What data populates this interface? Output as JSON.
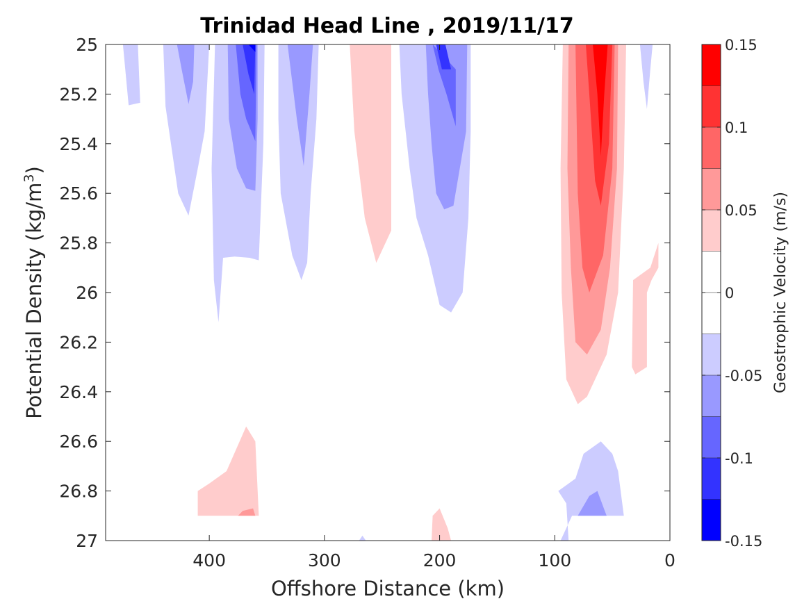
{
  "chart_data": {
    "type": "contour",
    "title": "Trinidad Head Line , 2019/11/17",
    "xlabel": "Offshore Distance (km)",
    "ylabel_prefix": "Potential Density (kg/m",
    "ylabel_sup": "3",
    "ylabel_suffix": ")",
    "xlim": [
      490,
      0
    ],
    "x_reversed": true,
    "ylim": [
      27,
      25
    ],
    "y_reversed": true,
    "x_ticks": [
      400,
      300,
      200,
      100,
      0
    ],
    "y_ticks": [
      "25",
      "25.2",
      "25.4",
      "25.6",
      "25.8",
      "26",
      "26.2",
      "26.4",
      "26.6",
      "26.8",
      "27"
    ],
    "grid": false,
    "colorbar": {
      "label": "Geostrophic Velocity (m/s)",
      "range": [
        -0.15,
        0.15
      ],
      "ticks": [
        "0.15",
        "0.1",
        "0.05",
        "0",
        "-0.05",
        "-0.1",
        "-0.15"
      ],
      "levels": [
        {
          "from": 0.125,
          "to": 0.15,
          "color": "#ff0000"
        },
        {
          "from": 0.1,
          "to": 0.125,
          "color": "#ff3333"
        },
        {
          "from": 0.075,
          "to": 0.1,
          "color": "#ff6666"
        },
        {
          "from": 0.05,
          "to": 0.075,
          "color": "#ff9999"
        },
        {
          "from": 0.025,
          "to": 0.05,
          "color": "#ffcccc"
        },
        {
          "from": 0.0,
          "to": 0.025,
          "color": "#ffffff"
        },
        {
          "from": -0.025,
          "to": 0.0,
          "color": "#ffffff"
        },
        {
          "from": -0.05,
          "to": -0.025,
          "color": "#ccccff"
        },
        {
          "from": -0.075,
          "to": -0.05,
          "color": "#9999ff"
        },
        {
          "from": -0.1,
          "to": -0.075,
          "color": "#6666ff"
        },
        {
          "from": -0.125,
          "to": -0.1,
          "color": "#3333ff"
        },
        {
          "from": -0.15,
          "to": -0.125,
          "color": "#0000ff"
        }
      ]
    },
    "regions": [
      {
        "level": -0.04,
        "color": "#ccccff",
        "points": [
          [
            475,
            25
          ],
          [
            462,
            25
          ],
          [
            460,
            25.235
          ],
          [
            470,
            25.245
          ]
        ]
      },
      {
        "level": -0.04,
        "color": "#ccccff",
        "points": [
          [
            440,
            25
          ],
          [
            400,
            25
          ],
          [
            404,
            25.35
          ],
          [
            410,
            25.5
          ],
          [
            418,
            25.69
          ],
          [
            427,
            25.6
          ],
          [
            438,
            25.25
          ]
        ]
      },
      {
        "level": -0.06,
        "color": "#9999ff",
        "points": [
          [
            428,
            25
          ],
          [
            413,
            25
          ],
          [
            414,
            25.15
          ],
          [
            418,
            25.24
          ],
          [
            424,
            25.1
          ]
        ]
      },
      {
        "level": -0.04,
        "color": "#ccccff",
        "points": [
          [
            395,
            25
          ],
          [
            352,
            25
          ],
          [
            353,
            25.4
          ],
          [
            357,
            25.87
          ],
          [
            365,
            25.86
          ],
          [
            378,
            25.855
          ],
          [
            388,
            25.86
          ],
          [
            392,
            26.12
          ],
          [
            396,
            25.95
          ],
          [
            398,
            25.5
          ]
        ]
      },
      {
        "level": -0.06,
        "color": "#9999ff",
        "points": [
          [
            384,
            25
          ],
          [
            358,
            25
          ],
          [
            358,
            25.3
          ],
          [
            360,
            25.59
          ],
          [
            368,
            25.58
          ],
          [
            376,
            25.5
          ],
          [
            383,
            25.3
          ]
        ]
      },
      {
        "level": -0.09,
        "color": "#6666ff",
        "points": [
          [
            377,
            25
          ],
          [
            359,
            25
          ],
          [
            360,
            25.39
          ],
          [
            368,
            25.3
          ],
          [
            373,
            25.2
          ]
        ]
      },
      {
        "level": -0.11,
        "color": "#3333ff",
        "points": [
          [
            371,
            25
          ],
          [
            360,
            25
          ],
          [
            361,
            25.2
          ],
          [
            366,
            25.12
          ]
        ]
      },
      {
        "level": -0.14,
        "color": "#0000ff",
        "points": [
          [
            366,
            25
          ],
          [
            360,
            25
          ],
          [
            360,
            25.03
          ]
        ]
      },
      {
        "level": -0.04,
        "color": "#ccccff",
        "points": [
          [
            340,
            25
          ],
          [
            305,
            25
          ],
          [
            307,
            25.3
          ],
          [
            312,
            25.6
          ],
          [
            315,
            25.88
          ],
          [
            320,
            25.95
          ],
          [
            328,
            25.85
          ],
          [
            338,
            25.6
          ],
          [
            340,
            25.3
          ]
        ]
      },
      {
        "level": -0.06,
        "color": "#9999ff",
        "points": [
          [
            332,
            25
          ],
          [
            310,
            25
          ],
          [
            313,
            25.2
          ],
          [
            318,
            25.49
          ],
          [
            324,
            25.3
          ]
        ]
      },
      {
        "level": 0.04,
        "color": "#ffcccc",
        "points": [
          [
            278,
            25
          ],
          [
            242,
            25
          ],
          [
            242,
            25.35
          ],
          [
            242,
            25.75
          ],
          [
            255,
            25.88
          ],
          [
            265,
            25.7
          ],
          [
            274,
            25.35
          ]
        ]
      },
      {
        "level": -0.04,
        "color": "#ccccff",
        "points": [
          [
            235,
            25
          ],
          [
            173,
            25
          ],
          [
            173,
            25.35
          ],
          [
            175,
            25.7
          ],
          [
            180,
            26.0
          ],
          [
            190,
            26.08
          ],
          [
            200,
            26.05
          ],
          [
            210,
            25.85
          ],
          [
            220,
            25.7
          ],
          [
            226,
            25.5
          ],
          [
            233,
            25.2
          ]
        ]
      },
      {
        "level": -0.06,
        "color": "#9999ff",
        "points": [
          [
            212,
            25
          ],
          [
            176,
            25
          ],
          [
            177,
            25.35
          ],
          [
            188,
            25.65
          ],
          [
            196,
            25.665
          ],
          [
            203,
            25.6
          ],
          [
            207,
            25.4
          ],
          [
            210,
            25.2
          ]
        ]
      },
      {
        "level": -0.09,
        "color": "#6666ff",
        "points": [
          [
            206,
            25
          ],
          [
            186,
            25.1
          ],
          [
            186,
            25.33
          ],
          [
            194,
            25.2
          ],
          [
            201,
            25.1
          ]
        ]
      },
      {
        "level": -0.11,
        "color": "#3333ff",
        "points": [
          [
            203,
            25
          ],
          [
            195,
            25
          ],
          [
            190,
            25.1
          ],
          [
            198,
            25.1
          ]
        ]
      },
      {
        "level": 0.04,
        "color": "#ffcccc",
        "points": [
          [
            93,
            25
          ],
          [
            38,
            25
          ],
          [
            40,
            25.5
          ],
          [
            45,
            26.0
          ],
          [
            55,
            26.25
          ],
          [
            72,
            26.42
          ],
          [
            80,
            26.45
          ],
          [
            90,
            26.35
          ],
          [
            94,
            26.0
          ],
          [
            95,
            25.5
          ]
        ]
      },
      {
        "level": 0.06,
        "color": "#ff9999",
        "points": [
          [
            88,
            25
          ],
          [
            45,
            25
          ],
          [
            46,
            25.5
          ],
          [
            52,
            25.9
          ],
          [
            60,
            26.15
          ],
          [
            72,
            26.25
          ],
          [
            82,
            26.2
          ],
          [
            86,
            25.9
          ],
          [
            89,
            25.5
          ]
        ]
      },
      {
        "level": 0.09,
        "color": "#ff6666",
        "points": [
          [
            82,
            25
          ],
          [
            48,
            25
          ],
          [
            50,
            25.5
          ],
          [
            58,
            25.85
          ],
          [
            70,
            26.0
          ],
          [
            76,
            25.9
          ],
          [
            80,
            25.6
          ]
        ]
      },
      {
        "level": 0.11,
        "color": "#ff3333",
        "points": [
          [
            73,
            25
          ],
          [
            50,
            25
          ],
          [
            53,
            25.4
          ],
          [
            60,
            25.65
          ],
          [
            65,
            25.55
          ],
          [
            70,
            25.2
          ]
        ]
      },
      {
        "level": 0.14,
        "color": "#ff0000",
        "points": [
          [
            67,
            25
          ],
          [
            54,
            25
          ],
          [
            57,
            25.2
          ],
          [
            60,
            25.45
          ],
          [
            63,
            25.2
          ]
        ]
      },
      {
        "level": 0.04,
        "color": "#ffcccc",
        "points": [
          [
            10,
            25.8
          ],
          [
            17,
            25.9
          ],
          [
            32,
            25.95
          ],
          [
            33,
            26.3
          ],
          [
            30,
            26.33
          ],
          [
            20,
            26.3
          ],
          [
            20,
            26.0
          ],
          [
            16,
            25.95
          ],
          [
            10,
            25.9
          ]
        ]
      },
      {
        "level": -0.04,
        "color": "#ccccff",
        "points": [
          [
            26,
            25
          ],
          [
            15,
            25
          ],
          [
            17,
            25.1
          ],
          [
            20,
            25.26
          ],
          [
            23,
            25.15
          ]
        ]
      },
      {
        "level": 0.04,
        "color": "#ffcccc",
        "points": [
          [
            410,
            26.8
          ],
          [
            410,
            26.9
          ],
          [
            357,
            26.9
          ],
          [
            360,
            26.6
          ],
          [
            368,
            26.54
          ],
          [
            385,
            26.72
          ],
          [
            400,
            26.77
          ]
        ]
      },
      {
        "level": 0.06,
        "color": "#ff9999",
        "points": [
          [
            375,
            26.9
          ],
          [
            360,
            26.9
          ],
          [
            362,
            26.87
          ],
          [
            371,
            26.88
          ]
        ]
      },
      {
        "level": -0.04,
        "color": "#ccccff",
        "points": [
          [
            95,
            27
          ],
          [
            88,
            27
          ],
          [
            90,
            26.85
          ],
          [
            97,
            26.8
          ],
          [
            82,
            26.75
          ],
          [
            75,
            26.65
          ],
          [
            60,
            26.6
          ],
          [
            50,
            26.65
          ],
          [
            45,
            26.72
          ],
          [
            40,
            26.9
          ],
          [
            37,
            26.9
          ],
          [
            85,
            26.9
          ],
          [
            90,
            26.95
          ]
        ]
      },
      {
        "level": -0.06,
        "color": "#9999ff",
        "points": [
          [
            80,
            26.9
          ],
          [
            55,
            26.9
          ],
          [
            63,
            26.8
          ],
          [
            70,
            26.82
          ]
        ]
      },
      {
        "level": 0.04,
        "color": "#ffcccc",
        "points": [
          [
            207,
            27
          ],
          [
            190,
            27
          ],
          [
            193,
            26.95
          ],
          [
            200,
            26.87
          ],
          [
            206,
            26.9
          ]
        ]
      },
      {
        "level": -0.04,
        "color": "#ccccff",
        "points": [
          [
            270,
            27
          ],
          [
            264,
            27
          ],
          [
            267,
            26.98
          ]
        ]
      }
    ]
  }
}
